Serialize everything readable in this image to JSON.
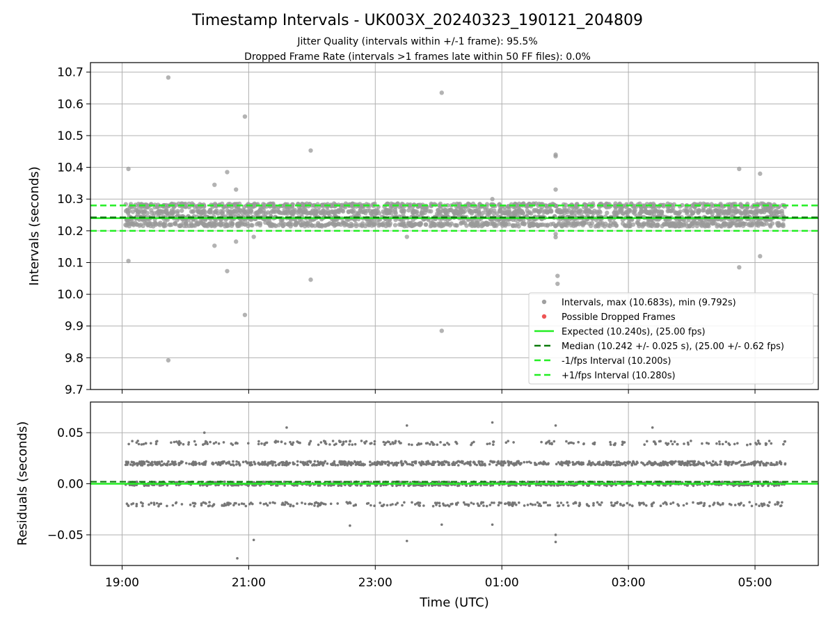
{
  "chart_data": {
    "type": "scatter",
    "title": "Timestamp Intervals - UK003X_20240323_190121_204809",
    "subtitle_lines": [
      "Jitter Quality (intervals within +/-1 frame): 95.5%",
      "Dropped Frame Rate (intervals >1 frames late within 50 FF files): 0.0%"
    ],
    "xlabel": "Time (UTC)",
    "x_unit": "hours since 19:00 UTC",
    "xlim": [
      -0.5,
      11.0
    ],
    "x_ticks": [
      {
        "value": 0,
        "label": "19:00"
      },
      {
        "value": 2,
        "label": "21:00"
      },
      {
        "value": 4,
        "label": "23:00"
      },
      {
        "value": 6,
        "label": "01:00"
      },
      {
        "value": 8,
        "label": "03:00"
      },
      {
        "value": 10,
        "label": "05:00"
      }
    ],
    "grid": true,
    "top_panel": {
      "ylabel": "Intervals (seconds)",
      "ylim": [
        9.7,
        10.73
      ],
      "y_ticks": [
        {
          "value": 9.7,
          "label": "9.7"
        },
        {
          "value": 9.8,
          "label": "9.8"
        },
        {
          "value": 9.9,
          "label": "9.9"
        },
        {
          "value": 10.0,
          "label": "10.0"
        },
        {
          "value": 10.1,
          "label": "10.1"
        },
        {
          "value": 10.2,
          "label": "10.2"
        },
        {
          "value": 10.3,
          "label": "10.3"
        },
        {
          "value": 10.4,
          "label": "10.4"
        },
        {
          "value": 10.5,
          "label": "10.5"
        },
        {
          "value": 10.6,
          "label": "10.6"
        },
        {
          "value": 10.7,
          "label": "10.7"
        }
      ],
      "bulk_band": {
        "x_range": [
          0.05,
          10.48
        ],
        "y_levels": [
          10.22,
          10.24,
          10.26,
          10.28
        ],
        "color": "#9a9a9a"
      },
      "outliers": [
        {
          "x": 0.1,
          "y": 10.395
        },
        {
          "x": 0.1,
          "y": 10.105
        },
        {
          "x": 0.73,
          "y": 10.683
        },
        {
          "x": 0.73,
          "y": 9.792
        },
        {
          "x": 1.46,
          "y": 10.345
        },
        {
          "x": 1.46,
          "y": 10.153
        },
        {
          "x": 1.66,
          "y": 10.385
        },
        {
          "x": 1.66,
          "y": 10.073
        },
        {
          "x": 1.8,
          "y": 10.33
        },
        {
          "x": 1.8,
          "y": 10.166
        },
        {
          "x": 1.94,
          "y": 10.56
        },
        {
          "x": 1.94,
          "y": 9.935
        },
        {
          "x": 2.08,
          "y": 10.181
        },
        {
          "x": 2.98,
          "y": 10.453
        },
        {
          "x": 2.98,
          "y": 10.046
        },
        {
          "x": 4.5,
          "y": 10.181
        },
        {
          "x": 5.05,
          "y": 10.635
        },
        {
          "x": 5.05,
          "y": 9.885
        },
        {
          "x": 5.85,
          "y": 10.3
        },
        {
          "x": 6.85,
          "y": 10.44
        },
        {
          "x": 6.85,
          "y": 10.435
        },
        {
          "x": 6.85,
          "y": 10.33
        },
        {
          "x": 6.85,
          "y": 10.19
        },
        {
          "x": 6.85,
          "y": 10.18
        },
        {
          "x": 6.88,
          "y": 10.058
        },
        {
          "x": 6.88,
          "y": 10.033
        },
        {
          "x": 9.75,
          "y": 10.395
        },
        {
          "x": 9.75,
          "y": 10.085
        },
        {
          "x": 10.08,
          "y": 10.38
        },
        {
          "x": 10.08,
          "y": 10.12
        }
      ],
      "lines": [
        {
          "name": "Expected (10.240s), (25.00 fps)",
          "y": 10.24,
          "color": "#22ee22",
          "dash": "solid",
          "width": 2.5
        },
        {
          "name": "Median (10.242 +/- 0.025 s), (25.00 +/- 0.62 fps)",
          "y": 10.242,
          "color": "#0a7a0a",
          "dash": "dashed",
          "width": 2.5
        },
        {
          "name": "-1/fps Interval (10.200s)",
          "y": 10.2,
          "color": "#22ee22",
          "dash": "dashed",
          "width": 2.5
        },
        {
          "name": "+1/fps Interval (10.280s)",
          "y": 10.28,
          "color": "#22ee22",
          "dash": "dashed",
          "width": 2.5
        }
      ],
      "legend": {
        "position": "lower right",
        "entries": [
          {
            "label": "Intervals, max (10.683s), min (9.792s)",
            "kind": "marker",
            "color": "#a0a0a0"
          },
          {
            "label": "Possible Dropped Frames",
            "kind": "marker",
            "color": "#ee5555"
          },
          {
            "label": "Expected (10.240s), (25.00 fps)",
            "kind": "line",
            "color": "#22ee22",
            "dash": "solid"
          },
          {
            "label": "Median (10.242 +/- 0.025 s), (25.00 +/- 0.62 fps)",
            "kind": "line",
            "color": "#0a7a0a",
            "dash": "dashed"
          },
          {
            "label": "-1/fps Interval (10.200s)",
            "kind": "line",
            "color": "#22ee22",
            "dash": "dashed"
          },
          {
            "label": "+1/fps Interval (10.280s)",
            "kind": "line",
            "color": "#22ee22",
            "dash": "dashed"
          }
        ]
      }
    },
    "bottom_panel": {
      "ylabel": "Residuals (seconds)",
      "ylim": [
        -0.08,
        0.08
      ],
      "y_ticks": [
        {
          "value": 0.05,
          "label": "0.05"
        },
        {
          "value": 0.0,
          "label": "0.00"
        },
        {
          "value": -0.05,
          "label": "−0.05"
        }
      ],
      "bulk_band": {
        "x_range": [
          0.05,
          10.48
        ],
        "y_levels": [
          -0.02,
          0.0,
          0.02,
          0.04
        ],
        "color": "#777777"
      },
      "outliers": [
        {
          "x": 1.3,
          "y": 0.05
        },
        {
          "x": 1.82,
          "y": -0.073
        },
        {
          "x": 2.08,
          "y": -0.055
        },
        {
          "x": 2.6,
          "y": 0.055
        },
        {
          "x": 3.6,
          "y": -0.041
        },
        {
          "x": 4.5,
          "y": 0.057
        },
        {
          "x": 4.5,
          "y": -0.056
        },
        {
          "x": 5.05,
          "y": -0.04
        },
        {
          "x": 5.85,
          "y": 0.06
        },
        {
          "x": 5.85,
          "y": -0.04
        },
        {
          "x": 6.85,
          "y": 0.057
        },
        {
          "x": 6.85,
          "y": -0.05
        },
        {
          "x": 6.85,
          "y": -0.057
        },
        {
          "x": 8.38,
          "y": 0.055
        }
      ],
      "lines": [
        {
          "name": "zero",
          "y": 0.0,
          "color": "#22ee22",
          "dash": "solid",
          "width": 2.5
        },
        {
          "name": "median residual",
          "y": 0.002,
          "color": "#0a7a0a",
          "dash": "dashed",
          "width": 2.2
        }
      ]
    }
  }
}
